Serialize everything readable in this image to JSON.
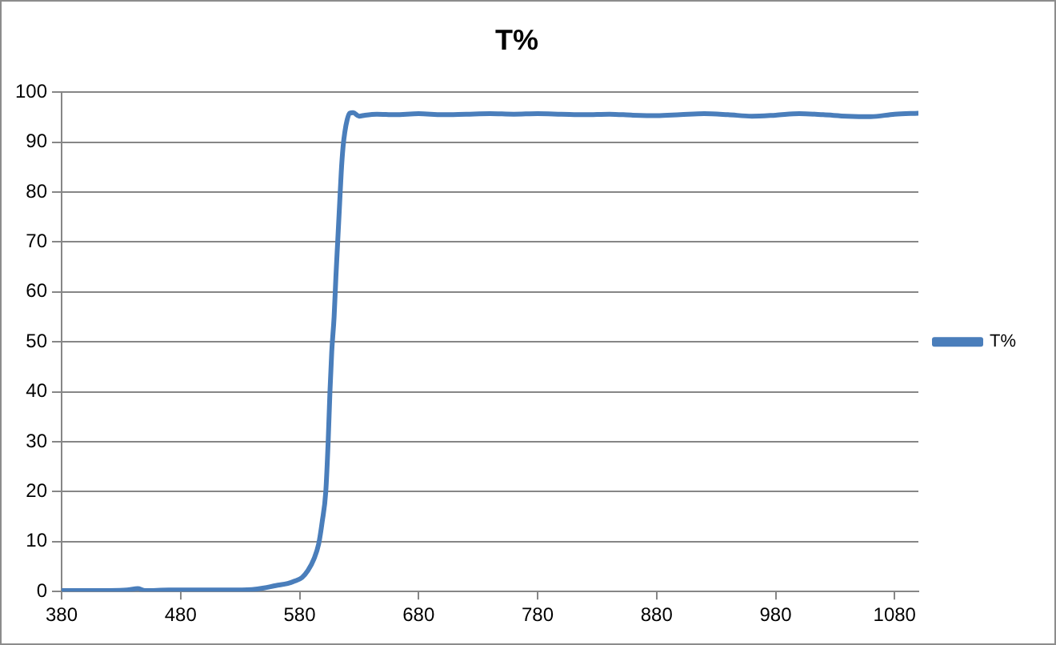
{
  "chart_data": {
    "type": "line",
    "title": "T%",
    "x": [
      380,
      400,
      420,
      435,
      444,
      450,
      470,
      500,
      520,
      540,
      550,
      560,
      570,
      576,
      582,
      587,
      592,
      596,
      599,
      602,
      604,
      605.5,
      607,
      609,
      610.5,
      612,
      613.5,
      615,
      616.5,
      618,
      620,
      622,
      625,
      630,
      635,
      645,
      660,
      680,
      700,
      720,
      740,
      760,
      780,
      800,
      820,
      840,
      860,
      880,
      900,
      920,
      940,
      960,
      980,
      1000,
      1020,
      1040,
      1060,
      1080,
      1100
    ],
    "series": [
      {
        "name": "T%",
        "color": "#4a7ebb",
        "values": [
          0.2,
          0.2,
          0.2,
          0.3,
          0.6,
          0.2,
          0.3,
          0.3,
          0.3,
          0.4,
          0.7,
          1.2,
          1.6,
          2.1,
          2.8,
          4.2,
          6.5,
          9.5,
          14,
          20,
          30,
          40,
          48,
          55,
          63,
          70,
          77,
          84,
          89,
          92,
          94.5,
          95.8,
          95.9,
          95.2,
          95.4,
          95.6,
          95.5,
          95.7,
          95.5,
          95.6,
          95.7,
          95.6,
          95.7,
          95.6,
          95.5,
          95.6,
          95.4,
          95.3,
          95.5,
          95.7,
          95.5,
          95.2,
          95.4,
          95.7,
          95.5,
          95.2,
          95.1,
          95.6,
          95.8
        ]
      }
    ],
    "xlim": [
      380,
      1100
    ],
    "xticks": [
      380,
      480,
      580,
      680,
      780,
      880,
      980,
      1080
    ],
    "ylim": [
      0,
      100
    ],
    "yticks": [
      0,
      10,
      20,
      30,
      40,
      50,
      60,
      70,
      80,
      90,
      100
    ],
    "grid": "y",
    "legend": "right",
    "marker": "none",
    "line_style": "solid"
  }
}
